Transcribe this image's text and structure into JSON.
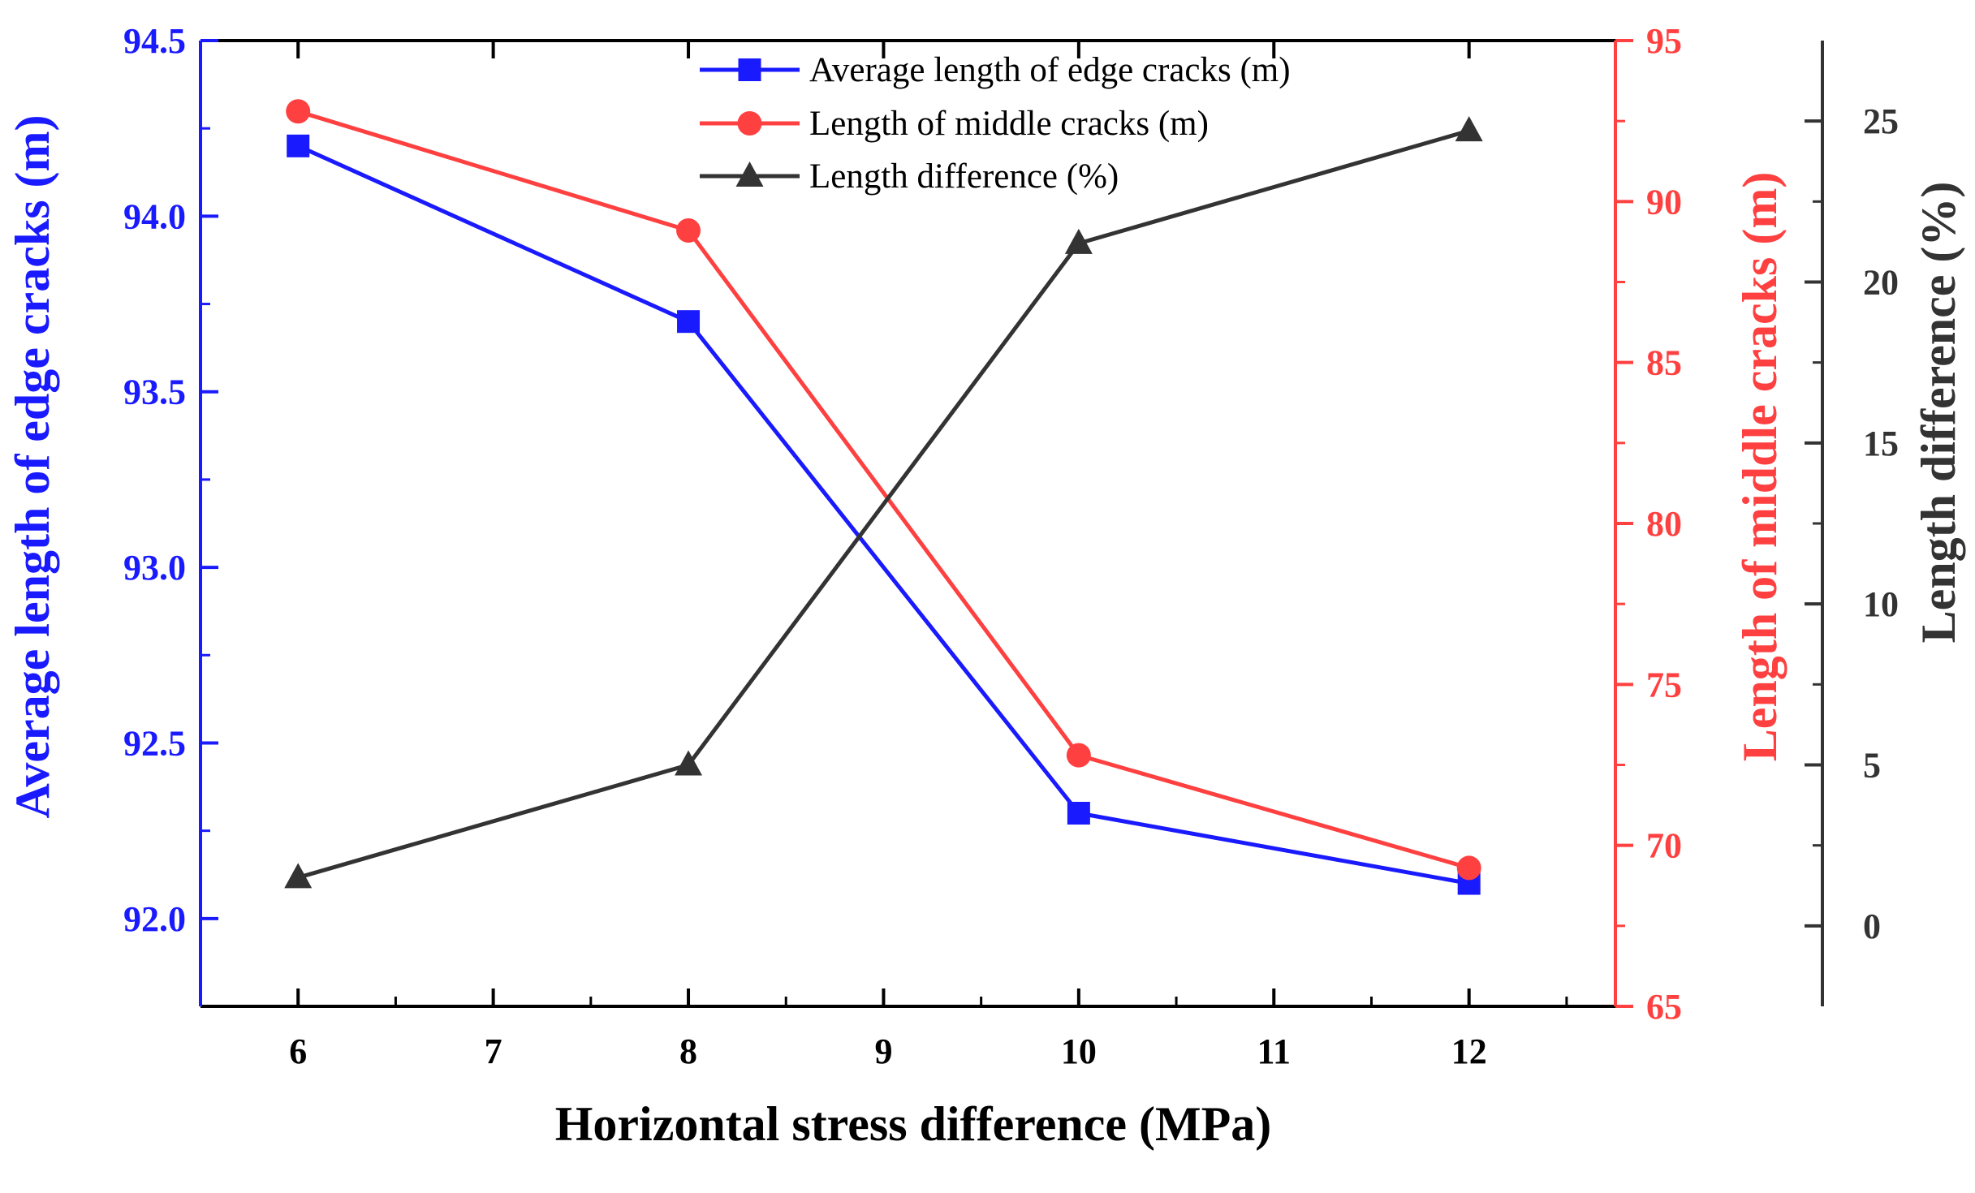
{
  "chart_data": {
    "type": "line",
    "xlabel": "Horizontal stress difference (MPa)",
    "x": [
      6,
      8,
      10,
      12
    ],
    "xlim": [
      5.5,
      12.75
    ],
    "xticks": [
      6,
      7,
      8,
      9,
      10,
      11,
      12
    ],
    "y_axes": {
      "left": {
        "label": "Average length of edge cracks (m)",
        "color": "#1a1aff",
        "ylim": [
          91.75,
          94.5
        ],
        "ticks": [
          "92.0",
          "92.5",
          "93.0",
          "93.5",
          "94.0",
          "94.5"
        ]
      },
      "right": {
        "label": "Length of middle cracks (m)",
        "color": "#ff4040",
        "ylim": [
          65,
          95
        ],
        "ticks": [
          "65",
          "70",
          "75",
          "80",
          "85",
          "90",
          "95"
        ]
      },
      "right2": {
        "label": "Length difference (%)",
        "color": "#333333",
        "ylim": [
          -2.5,
          27.5
        ],
        "ticks": [
          "0",
          "5",
          "10",
          "15",
          "20",
          "25"
        ]
      }
    },
    "series": [
      {
        "name": "Average length of edge cracks (m)",
        "axis": "left",
        "marker": "square",
        "color": "#1a1aff",
        "values": [
          94.2,
          93.7,
          92.3,
          92.1
        ]
      },
      {
        "name": "Length of middle cracks (m)",
        "axis": "right",
        "marker": "circle",
        "color": "#ff4040",
        "values": [
          92.8,
          89.1,
          72.8,
          69.3
        ]
      },
      {
        "name": "Length difference (%)",
        "axis": "right2",
        "marker": "triangle",
        "color": "#333333",
        "values": [
          1.5,
          5.0,
          21.2,
          24.7
        ]
      }
    ],
    "legend_position": "top-center"
  }
}
